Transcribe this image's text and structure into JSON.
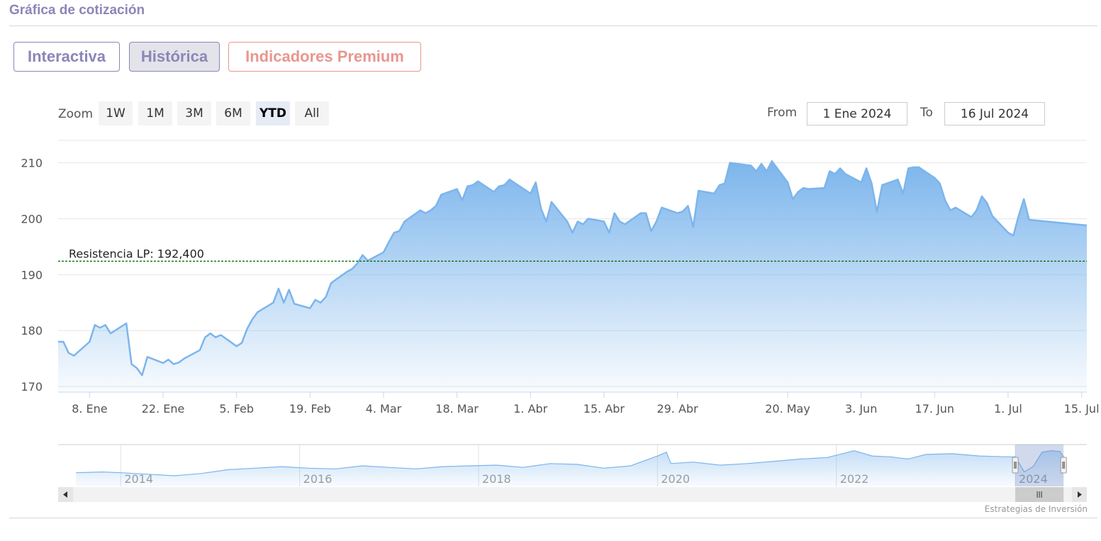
{
  "header": {
    "title": "Gráfica de cotización"
  },
  "tabs": [
    {
      "label": "Interactiva",
      "active": false
    },
    {
      "label": "Histórica",
      "active": true
    },
    {
      "label": "Indicadores Premium",
      "active": false
    }
  ],
  "zoom": {
    "label": "Zoom",
    "buttons": [
      "1W",
      "1M",
      "3M",
      "6M",
      "YTD",
      "All"
    ],
    "selected": "YTD"
  },
  "range": {
    "from_label": "From",
    "from_value": "1 Ene 2024",
    "to_label": "To",
    "to_value": "16 Jul 2024"
  },
  "credits": "Estrategias de Inversión",
  "colors": {
    "series_line": "#7cb5ec",
    "resistance": "#006400",
    "accent": "#8b86b8",
    "premium": "#e9968f"
  },
  "chart_data": {
    "type": "area",
    "title": "",
    "xlabel": "",
    "ylabel": "",
    "y_ticks": [
      170,
      180,
      190,
      200,
      210
    ],
    "ylim": [
      169,
      214
    ],
    "xlim": [
      "2024-01-02",
      "2024-07-16"
    ],
    "x_tick_labels": [
      {
        "date": "2024-01-08",
        "label": "8. Ene"
      },
      {
        "date": "2024-01-22",
        "label": "22. Ene"
      },
      {
        "date": "2024-02-05",
        "label": "5. Feb"
      },
      {
        "date": "2024-02-19",
        "label": "19. Feb"
      },
      {
        "date": "2024-03-04",
        "label": "4. Mar"
      },
      {
        "date": "2024-03-18",
        "label": "18. Mar"
      },
      {
        "date": "2024-04-01",
        "label": "1. Abr"
      },
      {
        "date": "2024-04-15",
        "label": "15. Abr"
      },
      {
        "date": "2024-04-29",
        "label": "29. Abr"
      },
      {
        "date": "2024-05-20",
        "label": "20. May"
      },
      {
        "date": "2024-06-03",
        "label": "3. Jun"
      },
      {
        "date": "2024-06-17",
        "label": "17. Jun"
      },
      {
        "date": "2024-07-01",
        "label": "1. Jul"
      },
      {
        "date": "2024-07-15",
        "label": "15. Jul"
      }
    ],
    "series": [
      {
        "points": [
          [
            "2024-01-02",
            178.0
          ],
          [
            "2024-01-03",
            178.0
          ],
          [
            "2024-01-04",
            176.0
          ],
          [
            "2024-01-05",
            175.5
          ],
          [
            "2024-01-08",
            178.0
          ],
          [
            "2024-01-09",
            181.0
          ],
          [
            "2024-01-10",
            180.5
          ],
          [
            "2024-01-11",
            181.0
          ],
          [
            "2024-01-12",
            179.5
          ],
          [
            "2024-01-15",
            181.3
          ],
          [
            "2024-01-16",
            174.0
          ],
          [
            "2024-01-17",
            173.3
          ],
          [
            "2024-01-18",
            172.0
          ],
          [
            "2024-01-19",
            175.3
          ],
          [
            "2024-01-22",
            174.2
          ],
          [
            "2024-01-23",
            174.8
          ],
          [
            "2024-01-24",
            174.0
          ],
          [
            "2024-01-25",
            174.3
          ],
          [
            "2024-01-26",
            175.0
          ],
          [
            "2024-01-29",
            176.5
          ],
          [
            "2024-01-30",
            178.8
          ],
          [
            "2024-01-31",
            179.5
          ],
          [
            "2024-02-01",
            178.8
          ],
          [
            "2024-02-02",
            179.2
          ],
          [
            "2024-02-05",
            177.2
          ],
          [
            "2024-02-06",
            177.8
          ],
          [
            "2024-02-07",
            180.3
          ],
          [
            "2024-02-08",
            182.0
          ],
          [
            "2024-02-09",
            183.3
          ],
          [
            "2024-02-12",
            185.0
          ],
          [
            "2024-02-13",
            187.5
          ],
          [
            "2024-02-14",
            185.0
          ],
          [
            "2024-02-15",
            187.3
          ],
          [
            "2024-02-16",
            184.8
          ],
          [
            "2024-02-19",
            184.0
          ],
          [
            "2024-02-20",
            185.5
          ],
          [
            "2024-02-21",
            185.0
          ],
          [
            "2024-02-22",
            186.0
          ],
          [
            "2024-02-23",
            188.5
          ],
          [
            "2024-02-26",
            190.5
          ],
          [
            "2024-02-27",
            191.0
          ],
          [
            "2024-02-28",
            192.0
          ],
          [
            "2024-02-29",
            193.5
          ],
          [
            "2024-03-01",
            192.5
          ],
          [
            "2024-03-04",
            194.0
          ],
          [
            "2024-03-05",
            195.8
          ],
          [
            "2024-03-06",
            197.5
          ],
          [
            "2024-03-07",
            197.8
          ],
          [
            "2024-03-08",
            199.5
          ],
          [
            "2024-03-11",
            201.5
          ],
          [
            "2024-03-12",
            201.0
          ],
          [
            "2024-03-13",
            201.5
          ],
          [
            "2024-03-14",
            202.3
          ],
          [
            "2024-03-15",
            204.3
          ],
          [
            "2024-03-18",
            205.3
          ],
          [
            "2024-03-19",
            203.3
          ],
          [
            "2024-03-20",
            205.8
          ],
          [
            "2024-03-21",
            206.0
          ],
          [
            "2024-03-22",
            206.7
          ],
          [
            "2024-03-25",
            204.8
          ],
          [
            "2024-03-26",
            205.8
          ],
          [
            "2024-03-27",
            206.0
          ],
          [
            "2024-03-28",
            207.0
          ],
          [
            "2024-04-01",
            204.5
          ],
          [
            "2024-04-02",
            206.5
          ],
          [
            "2024-04-03",
            201.8
          ],
          [
            "2024-04-04",
            199.5
          ],
          [
            "2024-04-05",
            203.0
          ],
          [
            "2024-04-08",
            199.5
          ],
          [
            "2024-04-09",
            197.5
          ],
          [
            "2024-04-10",
            199.5
          ],
          [
            "2024-04-11",
            199.0
          ],
          [
            "2024-04-12",
            200.0
          ],
          [
            "2024-04-15",
            199.5
          ],
          [
            "2024-04-16",
            197.5
          ],
          [
            "2024-04-17",
            201.0
          ],
          [
            "2024-04-18",
            199.5
          ],
          [
            "2024-04-19",
            199.0
          ],
          [
            "2024-04-22",
            201.0
          ],
          [
            "2024-04-23",
            201.0
          ],
          [
            "2024-04-24",
            197.8
          ],
          [
            "2024-04-25",
            199.5
          ],
          [
            "2024-04-26",
            202.0
          ],
          [
            "2024-04-29",
            201.0
          ],
          [
            "2024-04-30",
            201.3
          ],
          [
            "2024-05-01",
            202.3
          ],
          [
            "2024-05-02",
            198.5
          ],
          [
            "2024-05-03",
            205.0
          ],
          [
            "2024-05-06",
            204.5
          ],
          [
            "2024-05-07",
            206.0
          ],
          [
            "2024-05-08",
            206.3
          ],
          [
            "2024-05-09",
            210.0
          ],
          [
            "2024-05-13",
            209.5
          ],
          [
            "2024-05-14",
            208.5
          ],
          [
            "2024-05-15",
            209.8
          ],
          [
            "2024-05-16",
            208.5
          ],
          [
            "2024-05-17",
            210.3
          ],
          [
            "2024-05-20",
            206.5
          ],
          [
            "2024-05-21",
            203.5
          ],
          [
            "2024-05-22",
            204.8
          ],
          [
            "2024-05-23",
            205.5
          ],
          [
            "2024-05-24",
            205.3
          ],
          [
            "2024-05-27",
            205.5
          ],
          [
            "2024-05-28",
            208.5
          ],
          [
            "2024-05-29",
            208.0
          ],
          [
            "2024-05-30",
            209.0
          ],
          [
            "2024-05-31",
            208.0
          ],
          [
            "2024-06-03",
            206.5
          ],
          [
            "2024-06-04",
            209.0
          ],
          [
            "2024-06-05",
            206.3
          ],
          [
            "2024-06-06",
            201.2
          ],
          [
            "2024-06-07",
            206.0
          ],
          [
            "2024-06-10",
            207.0
          ],
          [
            "2024-06-11",
            204.5
          ],
          [
            "2024-06-12",
            209.0
          ],
          [
            "2024-06-13",
            209.2
          ],
          [
            "2024-06-14",
            209.2
          ],
          [
            "2024-06-17",
            207.3
          ],
          [
            "2024-06-18",
            206.3
          ],
          [
            "2024-06-19",
            203.3
          ],
          [
            "2024-06-20",
            201.5
          ],
          [
            "2024-06-21",
            202.0
          ],
          [
            "2024-06-24",
            200.3
          ],
          [
            "2024-06-25",
            201.5
          ],
          [
            "2024-06-26",
            204.0
          ],
          [
            "2024-06-27",
            202.8
          ],
          [
            "2024-06-28",
            200.5
          ],
          [
            "2024-07-01",
            197.5
          ],
          [
            "2024-07-02",
            197.0
          ],
          [
            "2024-07-03",
            200.5
          ],
          [
            "2024-07-04",
            203.5
          ],
          [
            "2024-07-05",
            199.8
          ],
          [
            "2024-07-16",
            198.8
          ]
        ]
      }
    ],
    "annotations": [
      {
        "type": "horizontal-line",
        "y": 192.4,
        "label": "Resistencia LP: 192,400",
        "style": "dashed"
      }
    ],
    "navigator": {
      "x_labels": [
        "2014",
        "2016",
        "2018",
        "2020",
        "2022",
        "2024"
      ],
      "x_range": [
        2013.3,
        2024.8
      ],
      "selected_range": [
        2024.0,
        2024.54
      ],
      "values": [
        [
          2013.5,
          178
        ],
        [
          2013.8,
          179
        ],
        [
          2014.0,
          178
        ],
        [
          2014.3,
          176
        ],
        [
          2014.6,
          174
        ],
        [
          2014.9,
          177
        ],
        [
          2015.2,
          182
        ],
        [
          2015.5,
          184
        ],
        [
          2015.8,
          186
        ],
        [
          2016.1,
          184
        ],
        [
          2016.4,
          183
        ],
        [
          2016.7,
          187
        ],
        [
          2017.0,
          185
        ],
        [
          2017.3,
          183
        ],
        [
          2017.6,
          186
        ],
        [
          2017.9,
          187
        ],
        [
          2018.2,
          188
        ],
        [
          2018.5,
          185
        ],
        [
          2018.8,
          190
        ],
        [
          2019.1,
          189
        ],
        [
          2019.4,
          184
        ],
        [
          2019.7,
          187
        ],
        [
          2020.0,
          200
        ],
        [
          2020.1,
          205
        ],
        [
          2020.15,
          190
        ],
        [
          2020.4,
          192
        ],
        [
          2020.7,
          188
        ],
        [
          2021.0,
          190
        ],
        [
          2021.3,
          193
        ],
        [
          2021.6,
          196
        ],
        [
          2021.9,
          198
        ],
        [
          2022.2,
          207
        ],
        [
          2022.4,
          200
        ],
        [
          2022.6,
          199
        ],
        [
          2022.8,
          196
        ],
        [
          2023.0,
          202
        ],
        [
          2023.3,
          203
        ],
        [
          2023.6,
          200
        ],
        [
          2023.9,
          199
        ],
        [
          2024.0,
          199
        ],
        [
          2024.1,
          179
        ],
        [
          2024.2,
          186
        ],
        [
          2024.3,
          205
        ],
        [
          2024.4,
          207
        ],
        [
          2024.5,
          206
        ],
        [
          2024.54,
          199
        ]
      ]
    }
  }
}
